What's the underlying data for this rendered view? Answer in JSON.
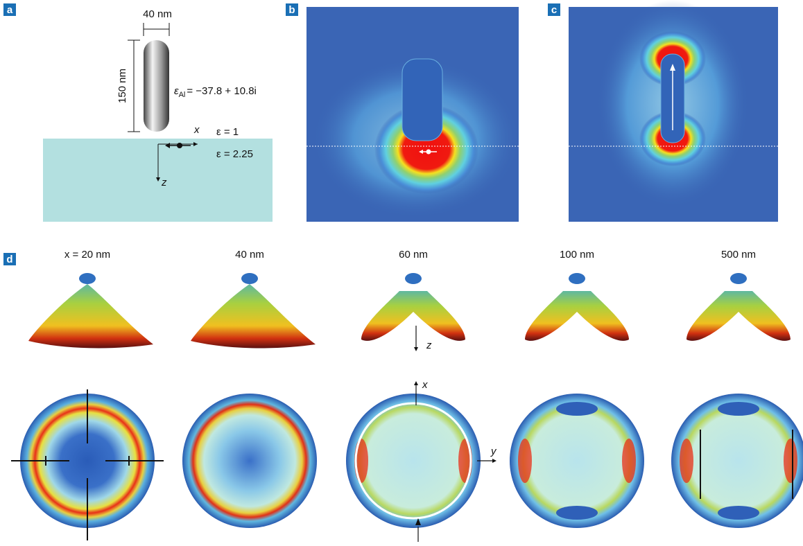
{
  "panels": {
    "a": "a",
    "b": "b",
    "c": "c",
    "d": "d"
  },
  "panel_a": {
    "width_label": "40 nm",
    "height_label": "150 nm",
    "permittivity": {
      "symbol": "ε",
      "subscript": "Al",
      "expression": "= −37.8 + 10.8i"
    },
    "x_axis": "x",
    "z_axis": "z",
    "upper_medium": "ε = 1",
    "lower_medium": "ε = 2.25"
  },
  "panel_d": {
    "columns": [
      {
        "label": "x = 20 nm"
      },
      {
        "label": "40 nm"
      },
      {
        "label": "60 nm"
      },
      {
        "label": "100 nm"
      },
      {
        "label": "500 nm"
      }
    ],
    "z_axis": "z",
    "x_axis": "x",
    "y_axis": "y"
  }
}
